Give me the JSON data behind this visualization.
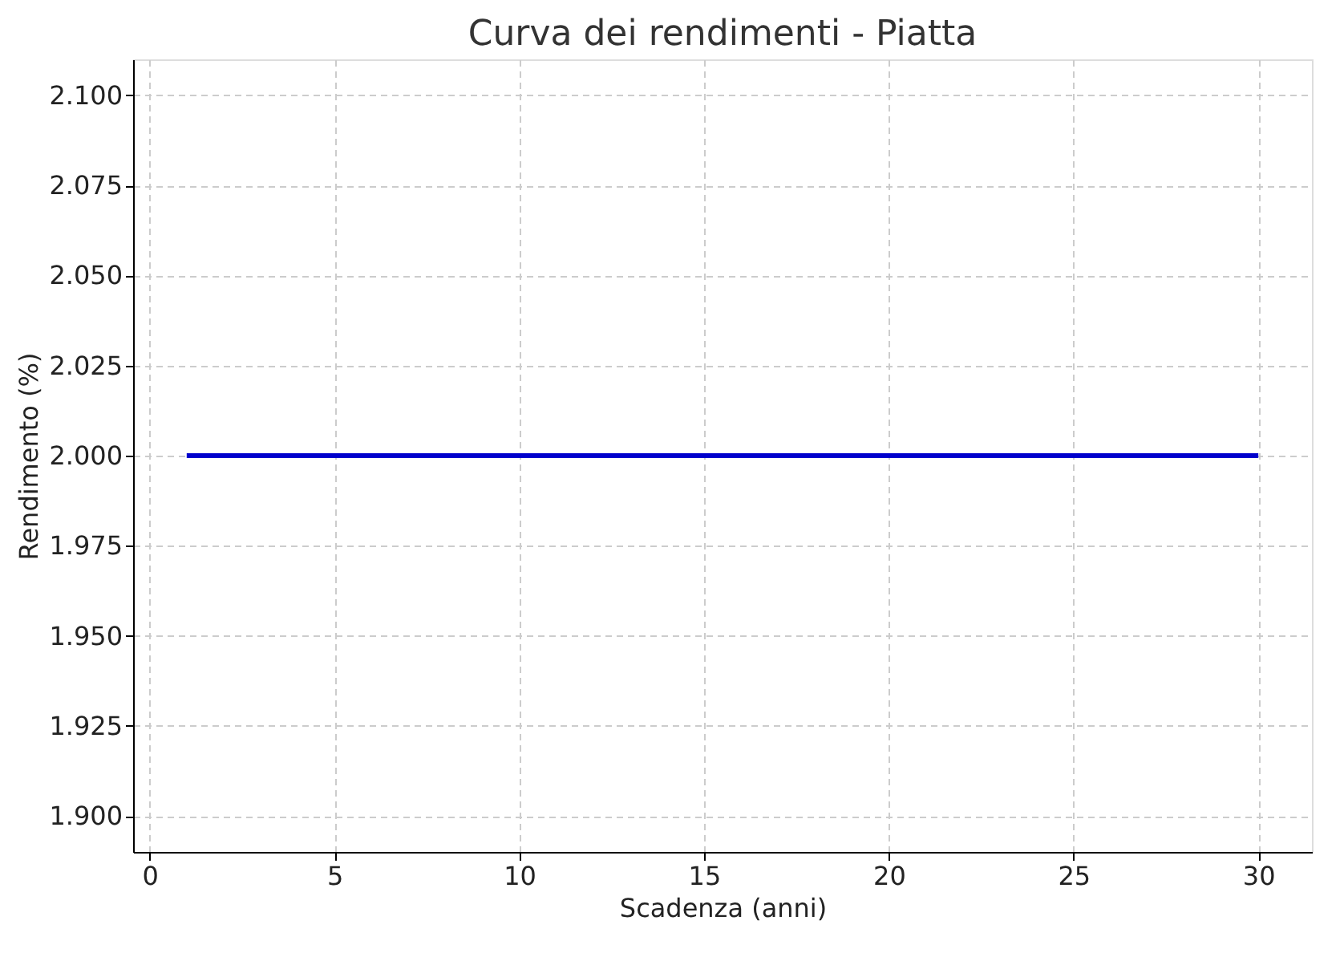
{
  "chart_data": {
    "type": "line",
    "title": "Curva dei rendimenti - Piatta",
    "xlabel": "Scadenza (anni)",
    "ylabel": "Rendimento (%)",
    "x": [
      1,
      30
    ],
    "series": [
      {
        "color": "#0000cc",
        "values": [
          2.0,
          2.0
        ]
      }
    ],
    "xlim": [
      -0.45,
      31.45
    ],
    "xticks": [
      0,
      5,
      10,
      15,
      20,
      25,
      30
    ],
    "ylim": [
      1.89,
      2.11
    ],
    "yticks": [
      {
        "value": 1.9,
        "label": "1.900"
      },
      {
        "value": 1.925,
        "label": "1.925"
      },
      {
        "value": 1.95,
        "label": "1.950"
      },
      {
        "value": 1.975,
        "label": "1.975"
      },
      {
        "value": 2.0,
        "label": "2.000"
      },
      {
        "value": 2.025,
        "label": "2.025"
      },
      {
        "value": 2.05,
        "label": "2.050"
      },
      {
        "value": 2.075,
        "label": "2.075"
      },
      {
        "value": 2.1,
        "label": "2.100"
      }
    ],
    "grid": true,
    "marker": "none",
    "line_style": "solid"
  }
}
